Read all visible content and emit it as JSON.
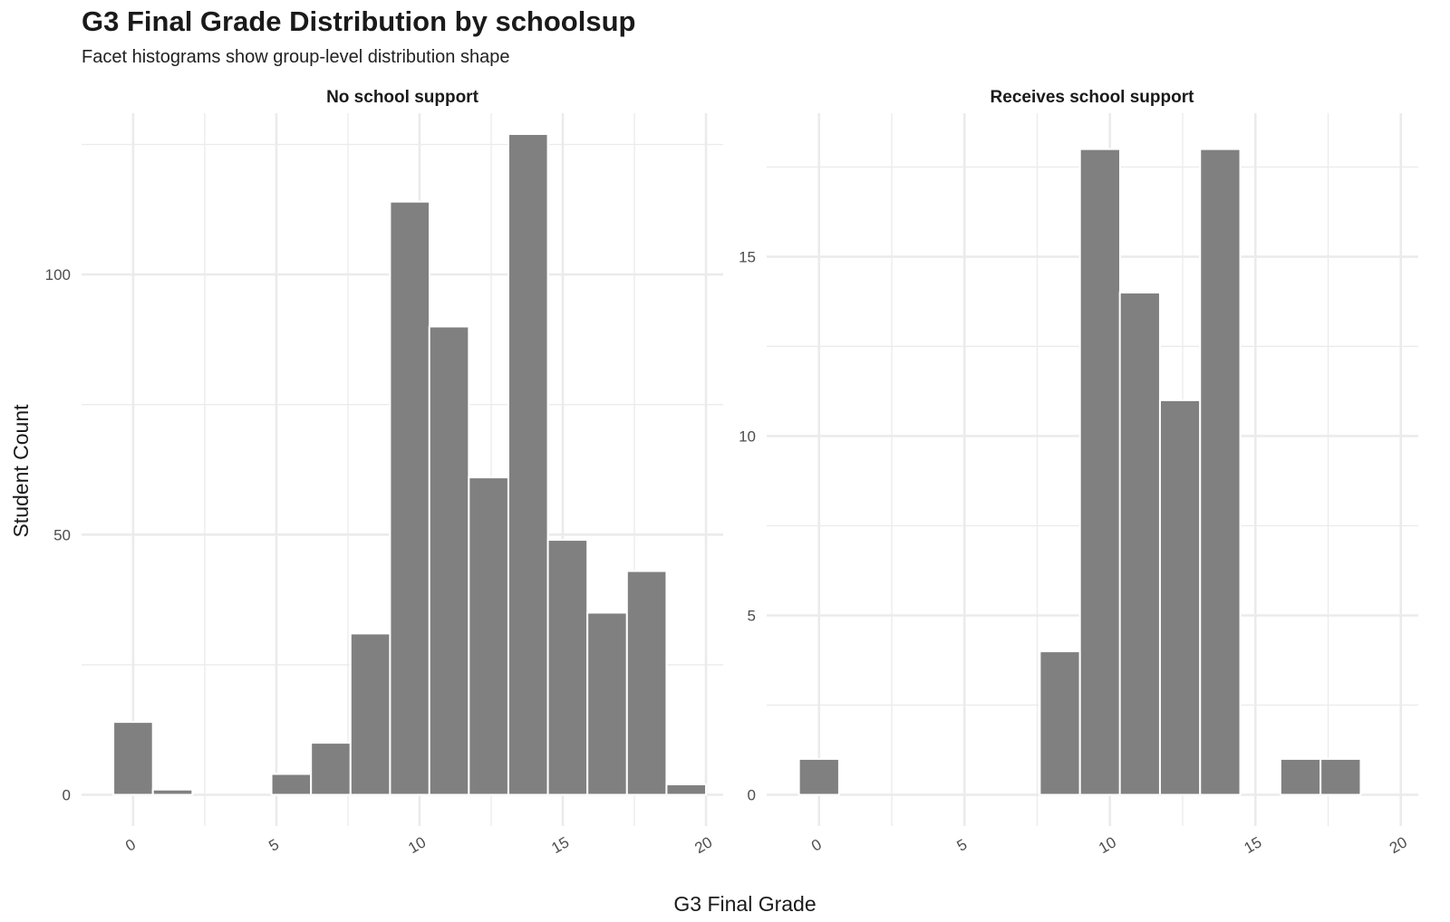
{
  "title": "G3 Final Grade Distribution by schoolsup",
  "subtitle": "Facet histograms show group-level distribution shape",
  "chart_data": {
    "type": "bar",
    "subtype": "faceted histogram",
    "title": "G3 Final Grade Distribution by schoolsup",
    "subtitle": "Facet histograms show group-level distribution shape",
    "xlabel": "G3 Final Grade",
    "ylabel": "Student Count",
    "bar_color": "#808080",
    "grid": true,
    "bin_width": 1.38,
    "x_ticks": [
      0,
      5,
      10,
      15,
      20
    ],
    "xlim": [
      -1.8,
      20.6
    ],
    "facets": [
      {
        "label": "No school support",
        "ylim": [
          -6,
          131
        ],
        "y_ticks": [
          0,
          50,
          100
        ],
        "bins": [
          {
            "x": 0.0,
            "count": 14
          },
          {
            "x": 1.38,
            "count": 1
          },
          {
            "x": 5.52,
            "count": 4
          },
          {
            "x": 6.9,
            "count": 10
          },
          {
            "x": 8.28,
            "count": 31
          },
          {
            "x": 9.66,
            "count": 114
          },
          {
            "x": 11.03,
            "count": 90
          },
          {
            "x": 12.41,
            "count": 61
          },
          {
            "x": 13.79,
            "count": 127
          },
          {
            "x": 15.17,
            "count": 49
          },
          {
            "x": 16.55,
            "count": 35
          },
          {
            "x": 17.93,
            "count": 43
          },
          {
            "x": 19.31,
            "count": 2
          }
        ]
      },
      {
        "label": "Receives school support",
        "ylim": [
          -0.87,
          19.0
        ],
        "y_ticks": [
          0,
          5,
          10,
          15
        ],
        "bins": [
          {
            "x": 0.0,
            "count": 1
          },
          {
            "x": 8.28,
            "count": 4
          },
          {
            "x": 9.66,
            "count": 18
          },
          {
            "x": 11.03,
            "count": 14
          },
          {
            "x": 12.41,
            "count": 11
          },
          {
            "x": 13.79,
            "count": 18
          },
          {
            "x": 16.55,
            "count": 1
          },
          {
            "x": 17.93,
            "count": 1
          }
        ]
      }
    ]
  }
}
